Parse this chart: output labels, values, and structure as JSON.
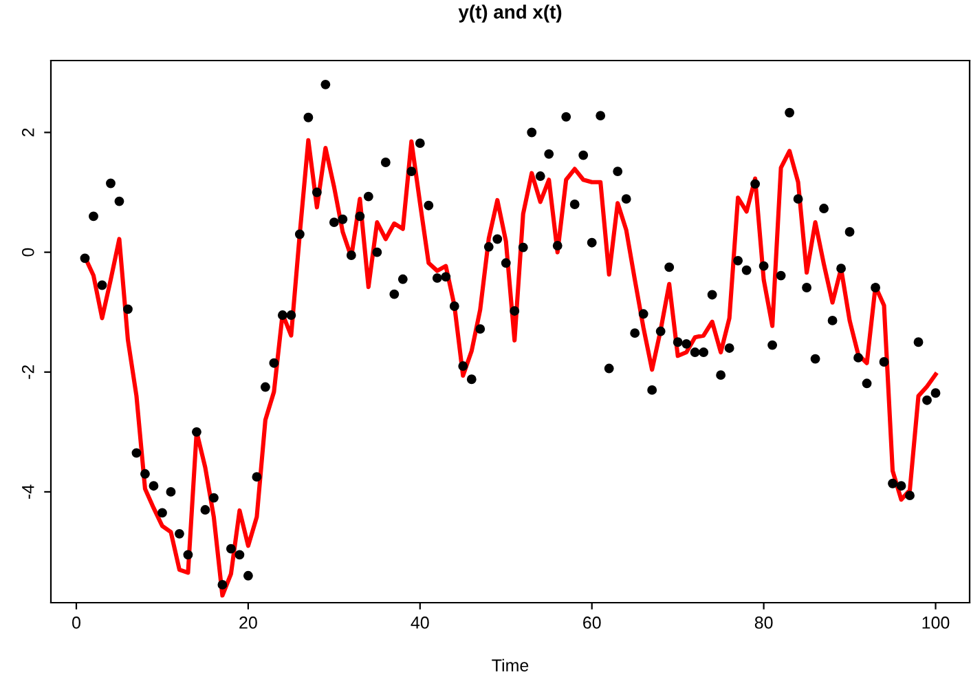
{
  "chart_data": {
    "type": "line",
    "title": "y(t) and x(t)",
    "xlabel": "Time",
    "x": [
      1,
      2,
      3,
      4,
      5,
      6,
      7,
      8,
      9,
      10,
      11,
      12,
      13,
      14,
      15,
      16,
      17,
      18,
      19,
      20,
      21,
      22,
      23,
      24,
      25,
      26,
      27,
      28,
      29,
      30,
      31,
      32,
      33,
      34,
      35,
      36,
      37,
      38,
      39,
      40,
      41,
      42,
      43,
      44,
      45,
      46,
      47,
      48,
      49,
      50,
      51,
      52,
      53,
      54,
      55,
      56,
      57,
      58,
      59,
      60,
      61,
      62,
      63,
      64,
      65,
      66,
      67,
      68,
      69,
      70,
      71,
      72,
      73,
      74,
      75,
      76,
      77,
      78,
      79,
      80,
      81,
      82,
      83,
      84,
      85,
      86,
      87,
      88,
      89,
      90,
      91,
      92,
      93,
      94,
      95,
      96,
      97,
      98,
      99,
      100
    ],
    "series": [
      {
        "type": "scatter",
        "color": "#000000",
        "marker": "circle",
        "values": [
          -0.1,
          0.6,
          -0.55,
          1.15,
          0.85,
          -0.95,
          -3.35,
          -3.7,
          -3.9,
          -4.35,
          -4.0,
          -4.7,
          -5.05,
          -3.0,
          -4.3,
          -4.1,
          -5.55,
          -4.95,
          -5.05,
          -5.4,
          -3.75,
          -2.25,
          -1.85,
          -1.05,
          -1.05,
          0.3,
          2.25,
          1.0,
          2.8,
          0.5,
          0.55,
          -0.05,
          0.6,
          0.93,
          0.0,
          1.5,
          -0.7,
          -0.45,
          1.35,
          1.82,
          0.78,
          -0.43,
          -0.41,
          -0.9,
          -1.9,
          -2.12,
          -1.28,
          0.09,
          0.22,
          -0.18,
          -0.98,
          0.08,
          2.0,
          1.27,
          1.64,
          0.11,
          2.26,
          0.8,
          1.62,
          0.16,
          2.28,
          -1.94,
          1.35,
          0.89,
          -1.35,
          -1.03,
          -2.3,
          -1.32,
          -0.25,
          -1.5,
          -1.53,
          -1.67,
          -1.67,
          -0.71,
          -2.05,
          -1.6,
          -0.14,
          -0.3,
          1.14,
          -0.23,
          -1.55,
          -0.39,
          2.33,
          0.89,
          -0.59,
          -1.78,
          0.73,
          -1.14,
          -0.27,
          0.34,
          -1.76,
          -2.19,
          -0.59,
          -1.83,
          -3.86,
          -3.9,
          -4.06,
          -1.5,
          -2.47,
          -2.35
        ]
      },
      {
        "color": "#ff0000",
        "marker": "none",
        "line_style": "solid",
        "values": [
          -0.08,
          -0.39,
          -1.1,
          -0.46,
          0.22,
          -1.46,
          -2.4,
          -3.95,
          -4.27,
          -4.57,
          -4.67,
          -5.3,
          -5.35,
          -3.0,
          -3.59,
          -4.42,
          -5.73,
          -5.37,
          -4.31,
          -4.9,
          -4.42,
          -2.8,
          -2.33,
          -1.03,
          -1.39,
          0.3,
          1.87,
          0.75,
          1.74,
          1.09,
          0.34,
          -0.08,
          0.89,
          -0.58,
          0.5,
          0.22,
          0.48,
          0.39,
          1.85,
          0.82,
          -0.18,
          -0.31,
          -0.23,
          -0.89,
          -2.06,
          -1.65,
          -0.96,
          0.23,
          0.87,
          0.18,
          -1.47,
          0.64,
          1.32,
          0.84,
          1.21,
          0.0,
          1.21,
          1.39,
          1.21,
          1.17,
          1.17,
          -0.37,
          0.82,
          0.37,
          -0.46,
          -1.26,
          -1.96,
          -1.3,
          -0.53,
          -1.73,
          -1.67,
          -1.42,
          -1.39,
          -1.16,
          -1.67,
          -1.1,
          0.91,
          0.68,
          1.23,
          -0.46,
          -1.23,
          1.41,
          1.69,
          1.17,
          -0.34,
          0.5,
          -0.2,
          -0.84,
          -0.27,
          -1.14,
          -1.71,
          -1.85,
          -0.57,
          -0.89,
          -3.65,
          -4.13,
          -3.97,
          -2.4,
          -2.24,
          -2.04
        ]
      }
    ],
    "xlim": [
      -2.96,
      103.96
    ],
    "xticks": [
      0,
      20,
      40,
      60,
      80,
      100
    ],
    "ylim": [
      -5.85,
      3.2
    ],
    "yticks": [
      -4,
      -2,
      0,
      2
    ],
    "grid": false,
    "legend": false
  }
}
